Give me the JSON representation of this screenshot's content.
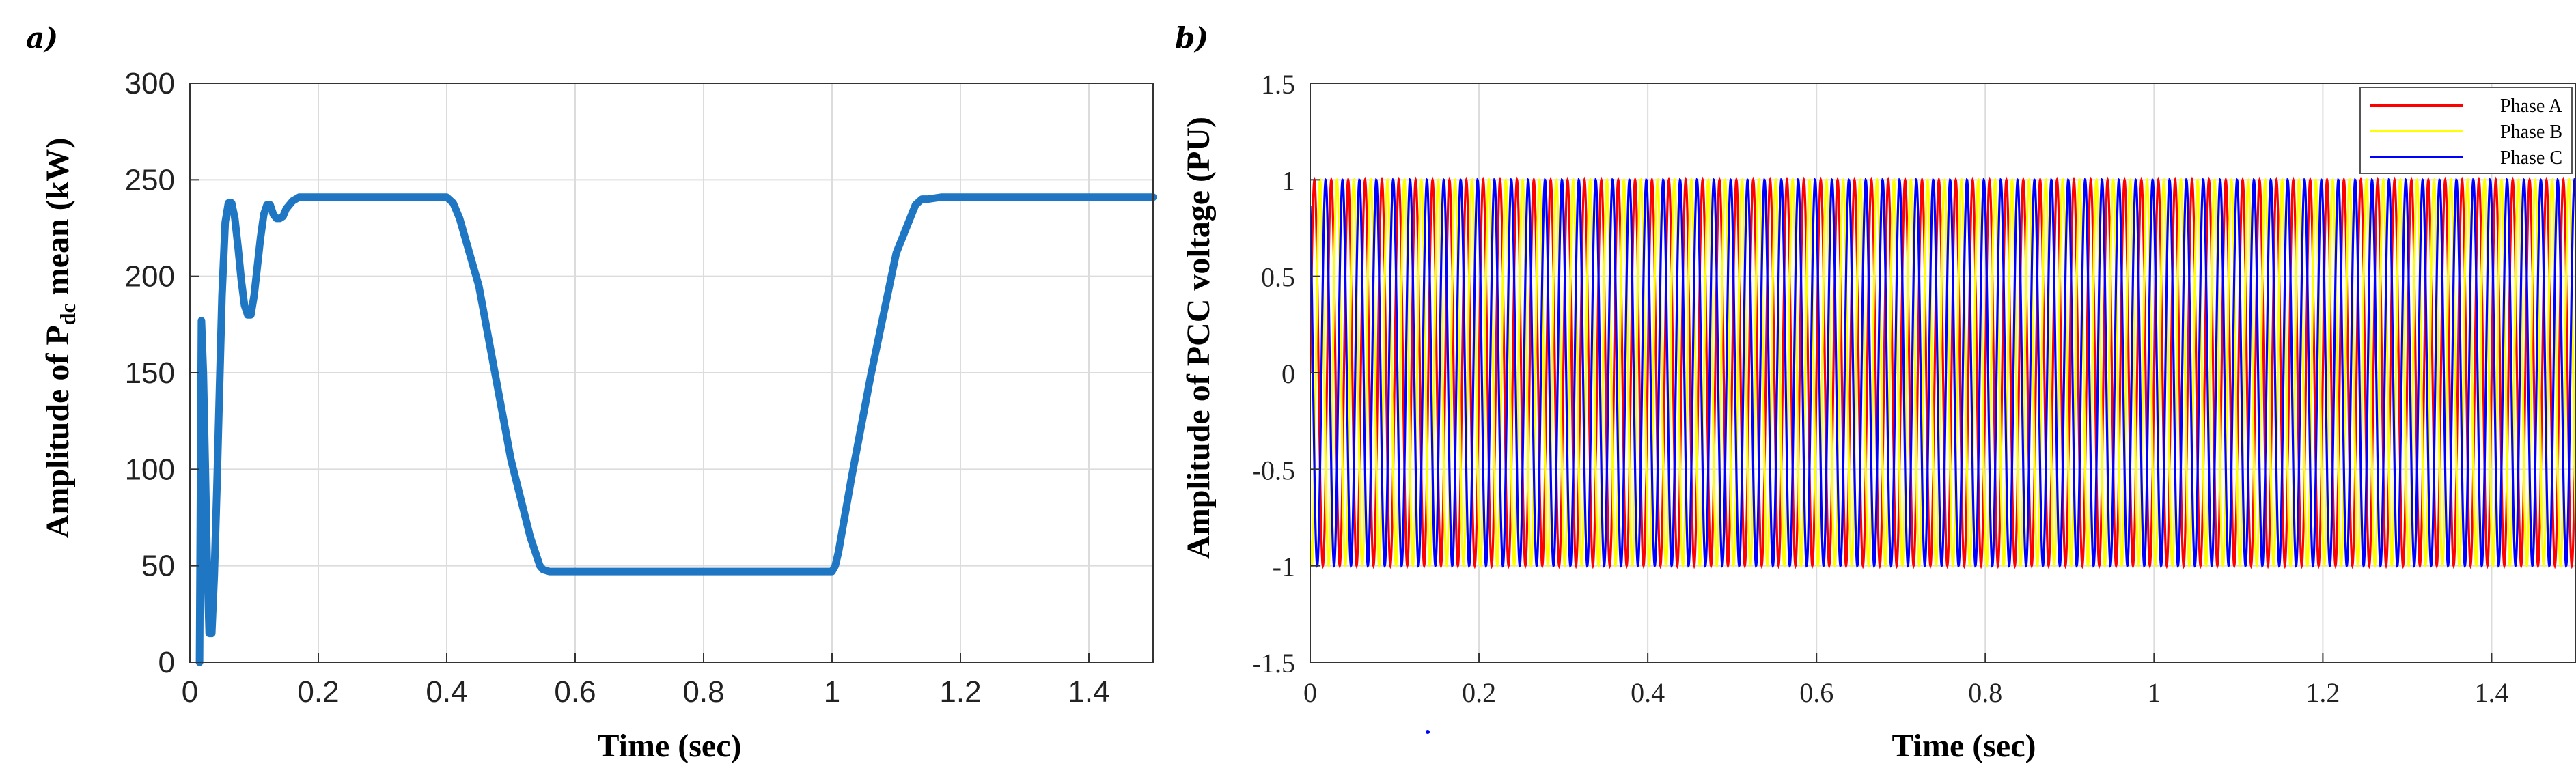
{
  "chart_data": [
    {
      "panel_label": "a)",
      "type": "line",
      "xlabel": "Time (sec)",
      "ylabel_parts": {
        "pre": "Amplitude of P",
        "sub": "dc",
        "post": " mean (kW)"
      },
      "xlim": [
        0,
        1.5
      ],
      "ylim": [
        0,
        300
      ],
      "xticks": [
        0,
        0.2,
        0.4,
        0.6,
        0.8,
        1,
        1.2,
        1.4
      ],
      "xtick_labels": [
        "0",
        "0.2",
        "0.4",
        "0.6",
        "0.8",
        "1",
        "1.2",
        "1.4"
      ],
      "yticks": [
        0,
        50,
        100,
        150,
        200,
        250,
        300
      ],
      "ytick_labels": [
        "0",
        "50",
        "100",
        "150",
        "200",
        "250",
        "300"
      ],
      "grid": true,
      "series": [
        {
          "name": "Pdc mean",
          "color": "#1f77c4",
          "x": [
            0.015,
            0.018,
            0.021,
            0.024,
            0.027,
            0.03,
            0.034,
            0.038,
            0.042,
            0.046,
            0.05,
            0.055,
            0.06,
            0.065,
            0.07,
            0.075,
            0.08,
            0.085,
            0.09,
            0.095,
            0.1,
            0.105,
            0.11,
            0.115,
            0.12,
            0.125,
            0.13,
            0.135,
            0.14,
            0.145,
            0.15,
            0.16,
            0.17,
            0.18,
            0.19,
            0.2,
            0.25,
            0.3,
            0.35,
            0.4,
            0.41,
            0.42,
            0.45,
            0.5,
            0.53,
            0.545,
            0.55,
            0.56,
            0.6,
            0.8,
            0.99,
            1.0,
            1.005,
            1.01,
            1.03,
            1.06,
            1.1,
            1.13,
            1.14,
            1.145,
            1.15,
            1.17,
            1.2,
            1.3,
            1.4,
            1.5
          ],
          "y": [
            0,
            177,
            150,
            100,
            50,
            15,
            15,
            45,
            90,
            140,
            190,
            228,
            238,
            238,
            230,
            215,
            198,
            185,
            180,
            180,
            190,
            205,
            220,
            232,
            237,
            237,
            232,
            230,
            230,
            231,
            235,
            239,
            241,
            241,
            241,
            241,
            241,
            241,
            241,
            241,
            238,
            230,
            195,
            105,
            65,
            50,
            48,
            47,
            47,
            47,
            47,
            47,
            50,
            57,
            95,
            148,
            212,
            237,
            240,
            240,
            240,
            241,
            241,
            241,
            241,
            241
          ]
        }
      ]
    },
    {
      "panel_label": "b)",
      "type": "line",
      "xlabel": "Time (sec)",
      "ylabel": "Amplitude of PCC voltage (PU)",
      "xlim": [
        0,
        1.5
      ],
      "ylim": [
        -1.5,
        1.5
      ],
      "xticks": [
        0,
        0.2,
        0.4,
        0.6,
        0.8,
        1,
        1.2,
        1.4
      ],
      "xtick_labels": [
        "0",
        "0.2",
        "0.4",
        "0.6",
        "0.8",
        "1",
        "1.2",
        "1.4"
      ],
      "yticks": [
        -1.5,
        -1,
        -0.5,
        0,
        0.5,
        1,
        1.5
      ],
      "ytick_labels": [
        "-1.5",
        "-1",
        "-0.5",
        "0",
        "0.5",
        "1",
        "1.5"
      ],
      "grid": true,
      "legend_position": "top-right",
      "frequency_hz": 50,
      "amplitude": 1,
      "series": [
        {
          "name": "Phase A",
          "color": "#ff0000",
          "phase_deg": 0
        },
        {
          "name": "Phase B",
          "color": "#ffff00",
          "phase_deg": -120
        },
        {
          "name": "Phase C",
          "color": "#0000ff",
          "phase_deg": 120
        }
      ]
    }
  ]
}
